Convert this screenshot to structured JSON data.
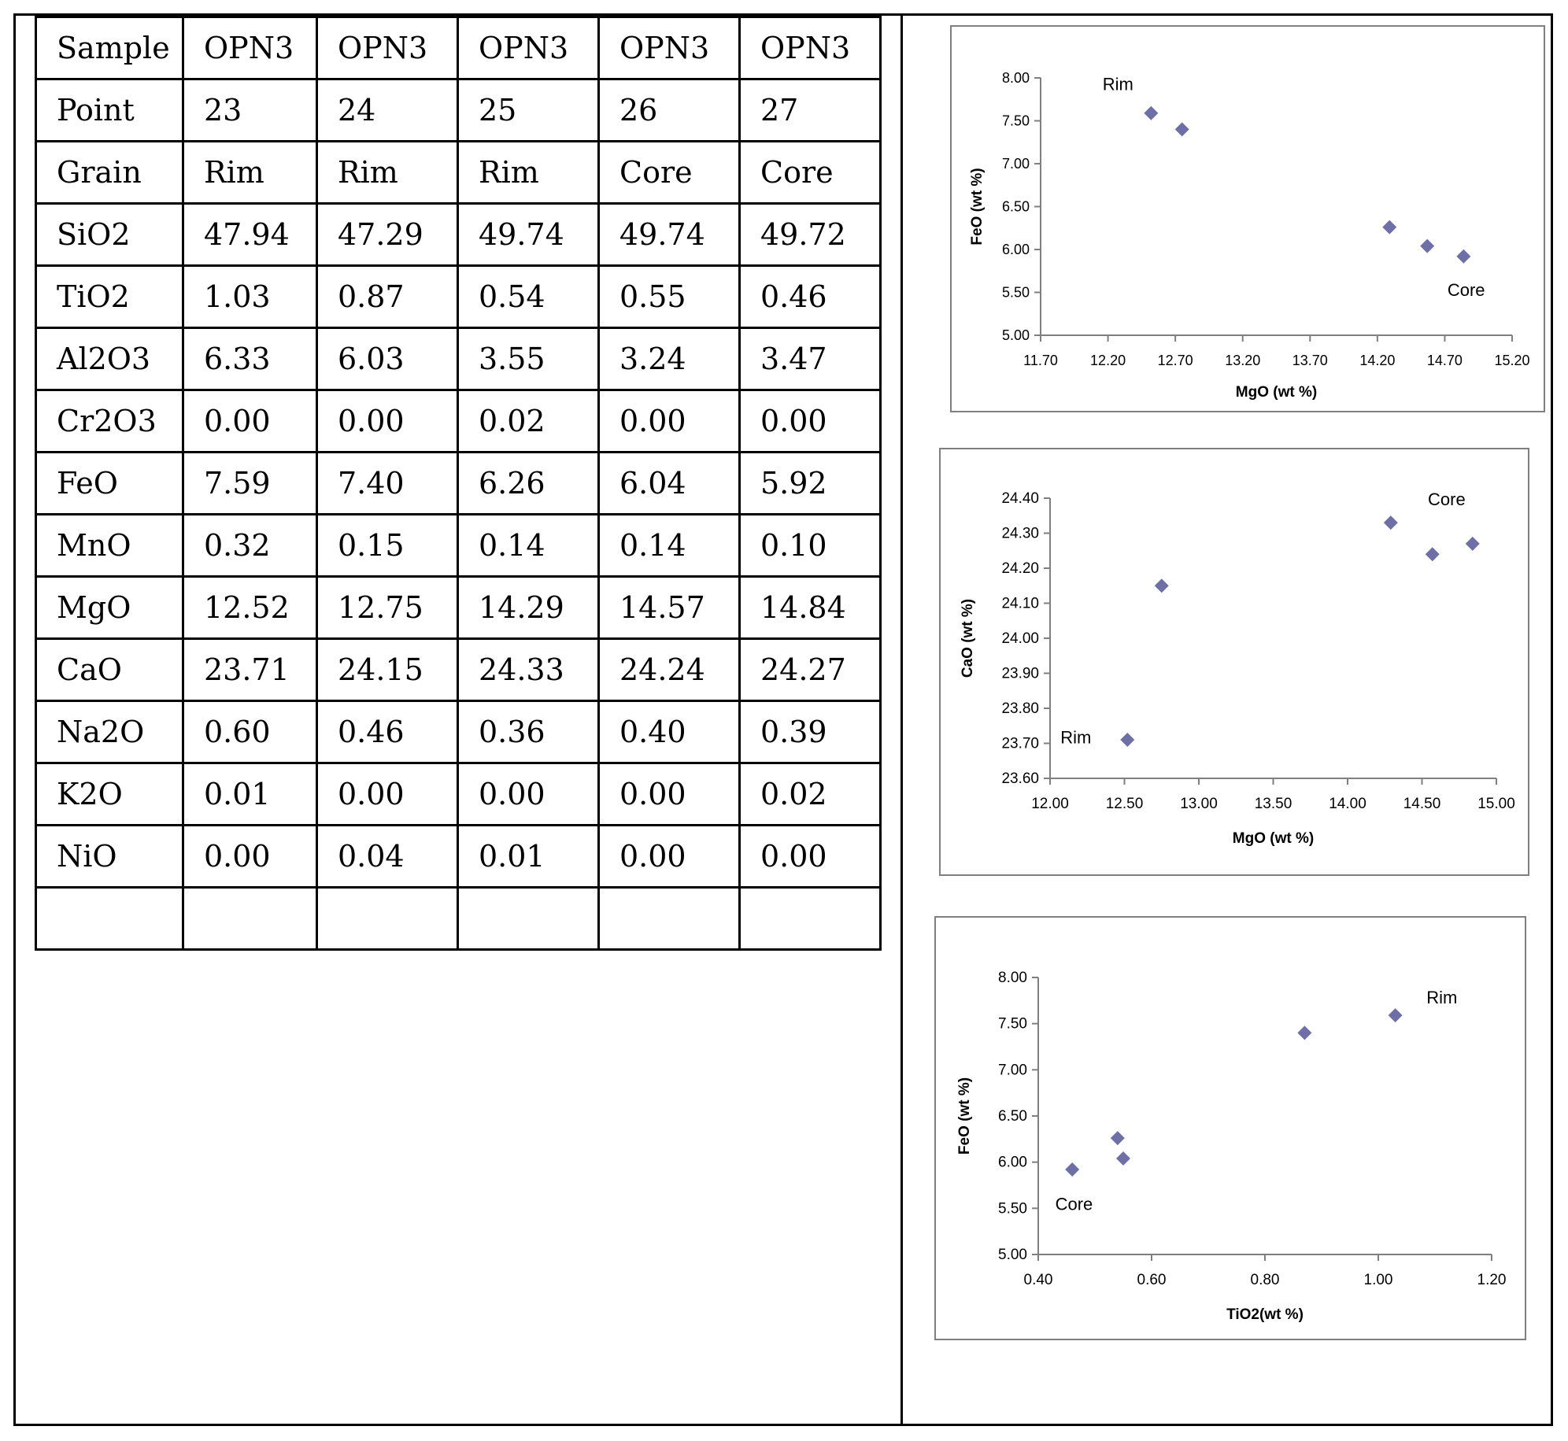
{
  "table": {
    "rows": [
      [
        "Sample",
        "OPN3",
        "OPN3",
        "OPN3",
        "OPN3",
        "OPN3"
      ],
      [
        "Point",
        "23",
        "24",
        "25",
        "26",
        "27"
      ],
      [
        "Grain",
        "Rim",
        "Rim",
        "Rim",
        "Core",
        "Core"
      ],
      [
        "SiO2",
        "47.94",
        "47.29",
        "49.74",
        "49.74",
        "49.72"
      ],
      [
        "TiO2",
        "1.03",
        "0.87",
        "0.54",
        "0.55",
        "0.46"
      ],
      [
        "Al2O3",
        "6.33",
        "6.03",
        "3.55",
        "3.24",
        "3.47"
      ],
      [
        "Cr2O3",
        "0.00",
        "0.00",
        "0.02",
        "0.00",
        "0.00"
      ],
      [
        "FeO",
        "7.59",
        "7.40",
        "6.26",
        "6.04",
        "5.92"
      ],
      [
        "MnO",
        "0.32",
        "0.15",
        "0.14",
        "0.14",
        "0.10"
      ],
      [
        "MgO",
        "12.52",
        "12.75",
        "14.29",
        "14.57",
        "14.84"
      ],
      [
        "CaO",
        "23.71",
        "24.15",
        "24.33",
        "24.24",
        "24.27"
      ],
      [
        "Na2O",
        "0.60",
        "0.46",
        "0.36",
        "0.40",
        "0.39"
      ],
      [
        "K2O",
        "0.01",
        "0.00",
        "0.00",
        "0.00",
        "0.02"
      ],
      [
        "NiO",
        "0.00",
        "0.04",
        "0.01",
        "0.00",
        "0.00"
      ],
      [
        "",
        "",
        "",
        "",
        "",
        ""
      ]
    ]
  },
  "colors": {
    "marker": "#6f6fa8",
    "axis": "#7f7f7f",
    "frame": "#7f7f7f"
  },
  "chart_data": [
    {
      "type": "scatter",
      "title": "",
      "xlabel": "MgO (wt %)",
      "ylabel": "FeO (wt %)",
      "xlim": [
        11.7,
        15.2
      ],
      "ylim": [
        5.0,
        8.0
      ],
      "xticks": [
        "11.70",
        "12.20",
        "12.70",
        "13.20",
        "13.70",
        "14.20",
        "14.70",
        "15.20"
      ],
      "yticks": [
        "5.00",
        "5.50",
        "6.00",
        "6.50",
        "7.00",
        "7.50",
        "8.00"
      ],
      "series": [
        {
          "name": "OPN3",
          "x": [
            12.52,
            12.75,
            14.29,
            14.57,
            14.84
          ],
          "y": [
            7.59,
            7.4,
            6.26,
            6.04,
            5.92
          ]
        }
      ],
      "annotations": [
        {
          "text": "Rim",
          "x": 12.16,
          "y": 7.86
        },
        {
          "text": "Core",
          "x": 14.72,
          "y": 5.46
        }
      ]
    },
    {
      "type": "scatter",
      "title": "",
      "xlabel": "MgO (wt %)",
      "ylabel": "CaO (wt %)",
      "xlim": [
        12.0,
        15.0
      ],
      "ylim": [
        23.6,
        24.4
      ],
      "xticks": [
        "12.00",
        "12.50",
        "13.00",
        "13.50",
        "14.00",
        "14.50",
        "15.00"
      ],
      "yticks": [
        "23.60",
        "23.70",
        "23.80",
        "23.90",
        "24.00",
        "24.10",
        "24.20",
        "24.30",
        "24.40"
      ],
      "series": [
        {
          "name": "OPN3",
          "x": [
            12.52,
            12.75,
            14.29,
            14.57,
            14.84
          ],
          "y": [
            23.71,
            24.15,
            24.33,
            24.24,
            24.27
          ]
        }
      ],
      "annotations": [
        {
          "text": "Rim",
          "x": 12.07,
          "y": 23.7
        },
        {
          "text": "Core",
          "x": 14.54,
          "y": 24.38
        }
      ]
    },
    {
      "type": "scatter",
      "title": "",
      "xlabel": "TiO2(wt %)",
      "ylabel": "FeO (wt %)",
      "xlim": [
        0.4,
        1.2
      ],
      "ylim": [
        5.0,
        8.0
      ],
      "xticks": [
        "0.40",
        "0.60",
        "0.80",
        "1.00",
        "1.20"
      ],
      "yticks": [
        "5.00",
        "5.50",
        "6.00",
        "6.50",
        "7.00",
        "7.50",
        "8.00"
      ],
      "series": [
        {
          "name": "OPN3",
          "x": [
            1.03,
            0.87,
            0.54,
            0.55,
            0.46
          ],
          "y": [
            7.59,
            7.4,
            6.26,
            6.04,
            5.92
          ]
        }
      ],
      "annotations": [
        {
          "text": "Rim",
          "x": 1.085,
          "y": 7.72
        },
        {
          "text": "Core",
          "x": 0.43,
          "y": 5.48
        }
      ]
    }
  ]
}
